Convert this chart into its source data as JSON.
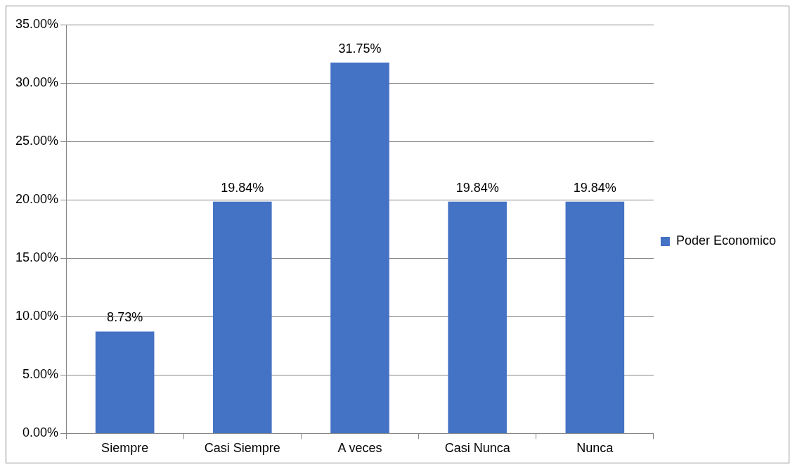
{
  "chart_data": {
    "type": "bar",
    "categories": [
      "Siempre",
      "Casi Siempre",
      "A veces",
      "Casi Nunca",
      "Nunca"
    ],
    "series": [
      {
        "name": "Poder Economico",
        "color": "#4472c4",
        "values": [
          8.73,
          19.84,
          31.75,
          19.84,
          19.84
        ],
        "value_labels": [
          "8.73%",
          "19.84%",
          "31.75%",
          "19.84%",
          "19.84%"
        ]
      }
    ],
    "ylim": [
      0,
      35
    ],
    "yticks": [
      {
        "value": 0,
        "label": "0.00%"
      },
      {
        "value": 5,
        "label": "5.00%"
      },
      {
        "value": 10,
        "label": "10.00%"
      },
      {
        "value": 15,
        "label": "15.00%"
      },
      {
        "value": 20,
        "label": "20.00%"
      },
      {
        "value": 25,
        "label": "25.00%"
      },
      {
        "value": 30,
        "label": "30.00%"
      },
      {
        "value": 35,
        "label": "35.00%"
      }
    ],
    "grid": "y",
    "legend": "right"
  }
}
